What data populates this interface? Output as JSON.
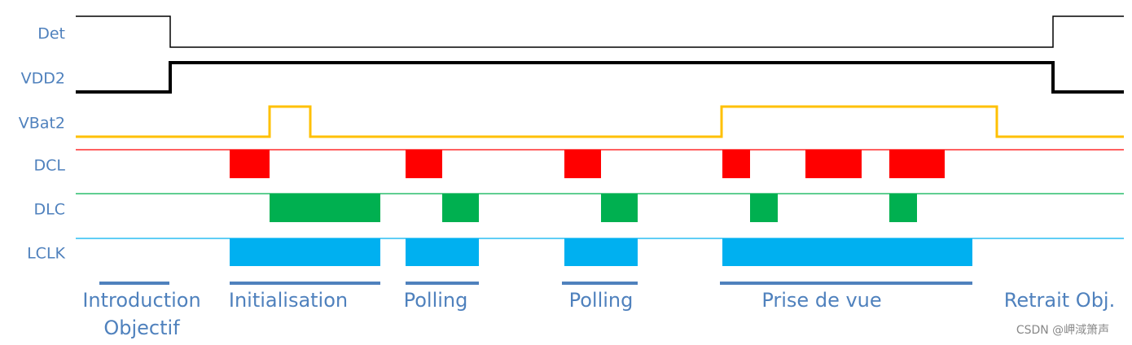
{
  "signals": [
    {
      "label": "Det"
    },
    {
      "label": "VDD2"
    },
    {
      "label": "VBat2"
    },
    {
      "label": "DCL"
    },
    {
      "label": "DLC"
    },
    {
      "label": "LCLK"
    }
  ],
  "phases": [
    {
      "lines": [
        "Introduction",
        "Objectif"
      ]
    },
    {
      "lines": [
        "Initialisation"
      ]
    },
    {
      "lines": [
        "Polling"
      ]
    },
    {
      "lines": [
        "Polling"
      ]
    },
    {
      "lines": [
        "Prise de vue"
      ]
    },
    {
      "lines": [
        "Retrait Obj."
      ]
    }
  ],
  "watermark": "CSDN @岬淢箫声"
}
